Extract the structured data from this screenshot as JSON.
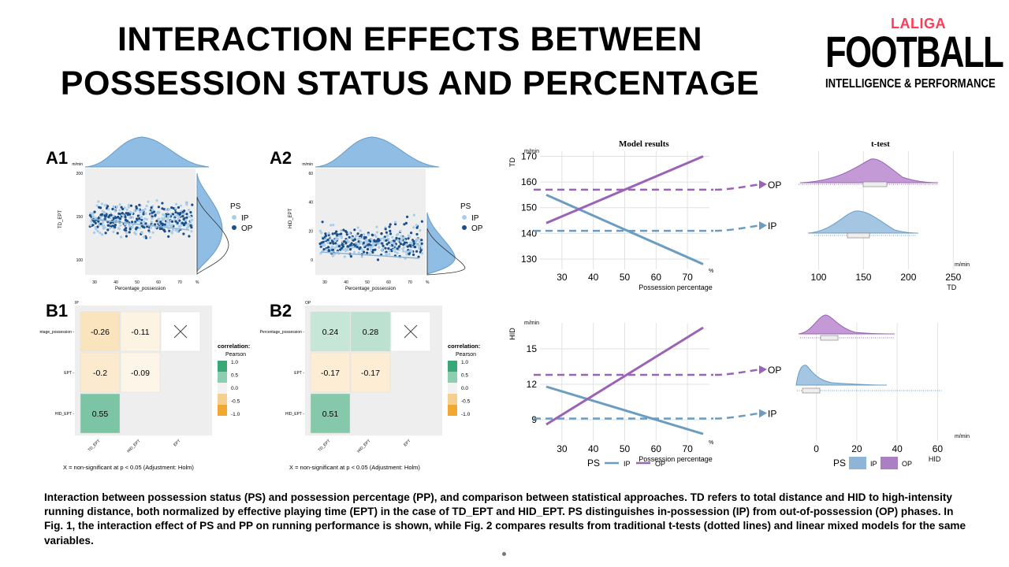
{
  "title_line1": "INTERACTION EFFECTS BETWEEN",
  "title_line2": "POSSESSION STATUS AND PERCENTAGE",
  "logo": {
    "brand": "LALIGA",
    "main": "FOOTBALL",
    "sub": "INTELLIGENCE & PERFORMANCE"
  },
  "caption": "Interaction between possession status (PS) and possession percentage (PP), and comparison between statistical approaches. TD refers to total distance and HID to high-intensity running distance, both normalized by effective playing time (EPT) in the case of TD_EPT and HID_EPT. PS distinguishes in-possession (IP) from out-of-possession (OP) phases. In Fig. 1, the interaction effect of PS and PP on running performance is shown, while Fig. 2 compares results from traditional t-tests (dotted lines) and linear mixed models for the same variables.",
  "colors": {
    "ip": "#a9cde8",
    "op": "#1b4f8a",
    "ip_line": "#6c9dc1",
    "op_line": "#9b63b5",
    "pos": "#3aa876",
    "neg": "#f0a830"
  },
  "panels": {
    "A1": {
      "label": "A1",
      "ylabel": "TD_EPT",
      "unit": "m/min",
      "xlabel": "Percentage_possession",
      "xunit": "%",
      "legend_title": "PS",
      "legend_ip": "IP",
      "legend_op": "OP",
      "xticks": [
        "30",
        "40",
        "50",
        "60",
        "70"
      ],
      "yticks": [
        "100",
        "150",
        "200"
      ]
    },
    "A2": {
      "label": "A2",
      "ylabel": "HID_EPT",
      "unit": "m/min",
      "xlabel": "Percentage_possession",
      "xunit": "%",
      "legend_title": "PS",
      "legend_ip": "IP",
      "legend_op": "OP",
      "xticks": [
        "30",
        "40",
        "50",
        "60",
        "70"
      ],
      "yticks": [
        "0",
        "20",
        "40",
        "60"
      ]
    },
    "B1": {
      "label": "B1",
      "group": "IP",
      "rows": [
        "Percentage_possession",
        "EPT",
        "HID_EPT"
      ],
      "cols": [
        "TD_EPT",
        "HID_EPT",
        "EPT"
      ],
      "values": [
        [
          "-0.26",
          "-0.11",
          "X"
        ],
        [
          "-0.2",
          "-0.09",
          ""
        ],
        [
          "0.55",
          "",
          ""
        ]
      ],
      "legend_title": "correlation:",
      "legend_sub": "Pearson",
      "legend_ticks": [
        "1.0",
        "0.5",
        "0.0",
        "-0.5",
        "-1.0"
      ],
      "note": "X = non-significant at p < 0.05 (Adjustment: Holm)"
    },
    "B2": {
      "label": "B2",
      "group": "OP",
      "rows": [
        "Percentage_possession",
        "EPT",
        "HID_EPT"
      ],
      "cols": [
        "TD_EPT",
        "HID_EPT",
        "EPT"
      ],
      "values": [
        [
          "0.24",
          "0.28",
          "X"
        ],
        [
          "-0.17",
          "-0.17",
          ""
        ],
        [
          "0.51",
          "",
          ""
        ]
      ],
      "legend_title": "correlation:",
      "legend_sub": "Pearson",
      "legend_ticks": [
        "1.0",
        "0.5",
        "0.0",
        "-0.5",
        "-1.0"
      ],
      "note": "X = non-significant at p < 0.05 (Adjustment: Holm)"
    }
  },
  "chart_data": [
    {
      "type": "line",
      "title": "Model results",
      "ylabel": "TD",
      "yunit": "m/min",
      "xlabel": "Possession percentage",
      "xunit": "%",
      "x_ticks": [
        30,
        40,
        50,
        60,
        70
      ],
      "y_ticks": [
        130,
        140,
        150,
        160,
        170
      ],
      "xlim": [
        23,
        77
      ],
      "ylim": [
        126,
        172
      ],
      "series": [
        {
          "name": "IP",
          "x": [
            25,
            75
          ],
          "y": [
            155,
            128
          ]
        },
        {
          "name": "OP",
          "x": [
            25,
            75
          ],
          "y": [
            144,
            170
          ]
        }
      ],
      "ttest_lines": {
        "IP": 141,
        "OP": 157
      }
    },
    {
      "type": "area",
      "title": "t-test",
      "xlabel": "TD",
      "xunit": "m/min",
      "x_ticks": [
        100,
        150,
        200,
        250
      ],
      "series": [
        {
          "name": "OP",
          "peak": 153
        },
        {
          "name": "IP",
          "peak": 143
        }
      ]
    },
    {
      "type": "line",
      "ylabel": "HID",
      "yunit": "m/min",
      "xlabel": "Possession percentage",
      "xunit": "%",
      "x_ticks": [
        30,
        40,
        50,
        60,
        70
      ],
      "y_ticks": [
        9,
        12,
        15
      ],
      "xlim": [
        23,
        77
      ],
      "ylim": [
        7.2,
        17.2
      ],
      "series": [
        {
          "name": "IP",
          "x": [
            25,
            75
          ],
          "y": [
            11.8,
            7.8
          ]
        },
        {
          "name": "OP",
          "x": [
            25,
            75
          ],
          "y": [
            8.6,
            16.8
          ]
        }
      ],
      "ttest_lines": {
        "IP": 9.1,
        "OP": 12.8
      }
    },
    {
      "type": "area",
      "xlabel": "HID",
      "xunit": "m/min",
      "x_ticks": [
        0,
        20,
        40,
        60
      ],
      "series": [
        {
          "name": "OP",
          "peak": 11
        },
        {
          "name": "IP",
          "peak": 3
        }
      ]
    }
  ],
  "fig2": {
    "ip_label": "IP",
    "op_label": "OP",
    "legend_title": "PS"
  }
}
